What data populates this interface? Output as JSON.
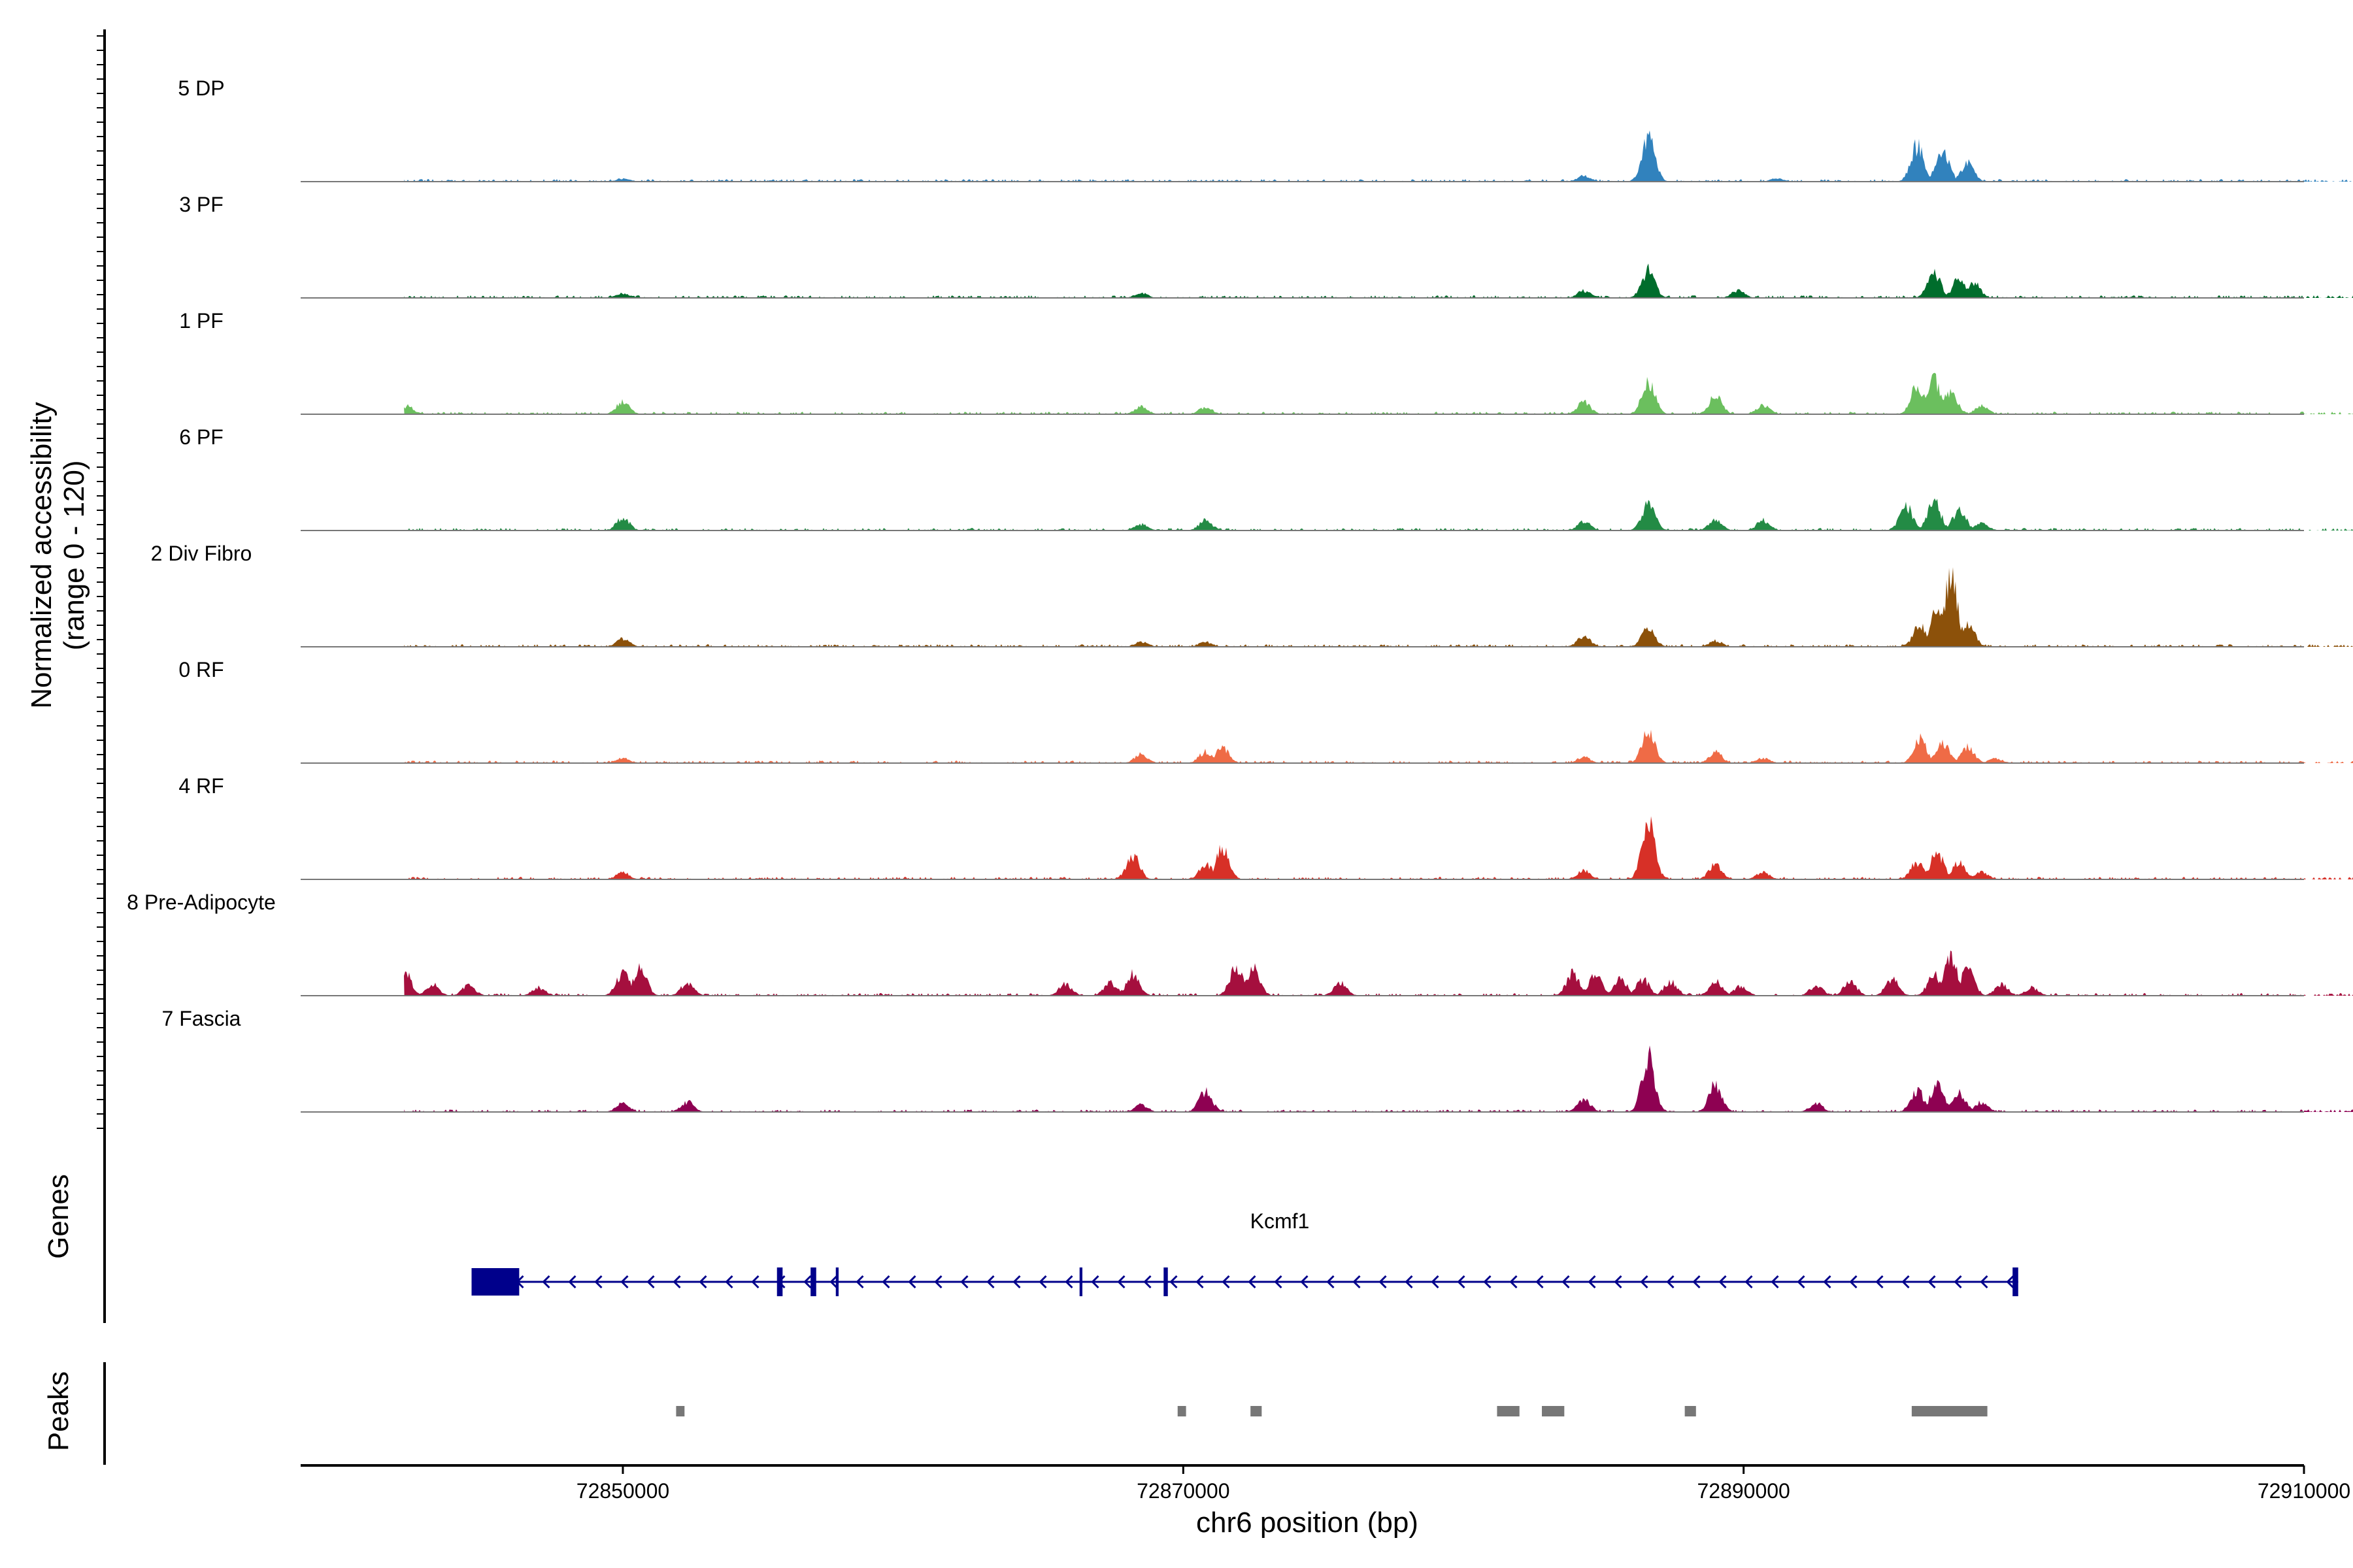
{
  "chart_data": {
    "type": "area",
    "title": "",
    "ylabel": "Normalized accessibility\n(range 0 - 120)",
    "ylim": [
      0,
      120
    ],
    "xlabel": "chr6 position (bp)",
    "xlim": [
      72838500,
      72910000
    ],
    "xticks": [
      {
        "value": 72850000,
        "label": "72850000"
      },
      {
        "value": 72870000,
        "label": "72870000"
      },
      {
        "value": 72890000,
        "label": "72890000"
      },
      {
        "value": 72910000,
        "label": "72910000"
      }
    ],
    "signal_range": [
      72842200,
      72913800
    ],
    "noise_max": 5,
    "series": [
      {
        "name": "5 DP",
        "color": "#3182BD",
        "peaks": [
          [
            72850000,
            8
          ],
          [
            72884300,
            15
          ],
          [
            72886600,
            105
          ],
          [
            72896200,
            88
          ],
          [
            72897100,
            75
          ],
          [
            72898000,
            45
          ],
          [
            72891200,
            8
          ]
        ]
      },
      {
        "name": "3 PF",
        "color": "#006D2C",
        "peaks": [
          [
            72850000,
            12
          ],
          [
            72868500,
            12
          ],
          [
            72884300,
            18
          ],
          [
            72886600,
            70
          ],
          [
            72889800,
            18
          ],
          [
            72896800,
            62
          ],
          [
            72897700,
            48
          ],
          [
            72898200,
            38
          ]
        ]
      },
      {
        "name": "1 PF",
        "color": "#6BBF5E",
        "peaks": [
          [
            72842300,
            20
          ],
          [
            72850000,
            30
          ],
          [
            72868500,
            18
          ],
          [
            72870800,
            18
          ],
          [
            72884300,
            30
          ],
          [
            72886600,
            80
          ],
          [
            72889000,
            45
          ],
          [
            72890700,
            22
          ],
          [
            72896200,
            68
          ],
          [
            72896800,
            82
          ],
          [
            72897400,
            58
          ],
          [
            72898500,
            20
          ]
        ]
      },
      {
        "name": "6 PF",
        "color": "#238B45",
        "peaks": [
          [
            72850000,
            32
          ],
          [
            72868500,
            15
          ],
          [
            72870800,
            25
          ],
          [
            72884300,
            22
          ],
          [
            72886600,
            65
          ],
          [
            72889000,
            25
          ],
          [
            72890700,
            25
          ],
          [
            72895800,
            60
          ],
          [
            72896800,
            72
          ],
          [
            72897700,
            50
          ],
          [
            72898500,
            18
          ]
        ]
      },
      {
        "name": "2 Div Fibro",
        "color": "#8C510A",
        "peaks": [
          [
            72850000,
            20
          ],
          [
            72868500,
            12
          ],
          [
            72870800,
            12
          ],
          [
            72884300,
            25
          ],
          [
            72886600,
            48
          ],
          [
            72889000,
            15
          ],
          [
            72896300,
            55
          ],
          [
            72896900,
            88
          ],
          [
            72897400,
            165
          ],
          [
            72898000,
            60
          ]
        ]
      },
      {
        "name": "0 RF",
        "color": "#EF6B46",
        "peaks": [
          [
            72850000,
            12
          ],
          [
            72868500,
            22
          ],
          [
            72870800,
            28
          ],
          [
            72871400,
            38
          ],
          [
            72884300,
            15
          ],
          [
            72886600,
            80
          ],
          [
            72889000,
            28
          ],
          [
            72890700,
            12
          ],
          [
            72896300,
            58
          ],
          [
            72897100,
            52
          ],
          [
            72898000,
            40
          ],
          [
            72899000,
            12
          ]
        ]
      },
      {
        "name": "4 RF",
        "color": "#D73027",
        "peaks": [
          [
            72850000,
            18
          ],
          [
            72868200,
            60
          ],
          [
            72870800,
            38
          ],
          [
            72871400,
            75
          ],
          [
            72884300,
            22
          ],
          [
            72886600,
            135
          ],
          [
            72889000,
            38
          ],
          [
            72890700,
            18
          ],
          [
            72896200,
            42
          ],
          [
            72896900,
            68
          ],
          [
            72897700,
            42
          ],
          [
            72898500,
            18
          ]
        ]
      },
      {
        "name": "8 Pre-Adipocyte",
        "color": "#A50F3E",
        "peaks": [
          [
            72842200,
            60
          ],
          [
            72843200,
            30
          ],
          [
            72844500,
            25
          ],
          [
            72847000,
            20
          ],
          [
            72852300,
            30
          ],
          [
            72850000,
            55
          ],
          [
            72850600,
            72
          ],
          [
            72865800,
            28
          ],
          [
            72867400,
            32
          ],
          [
            72868200,
            52
          ],
          [
            72871900,
            72
          ],
          [
            72872500,
            65
          ],
          [
            72875600,
            32
          ],
          [
            72883900,
            55
          ],
          [
            72884700,
            50
          ],
          [
            72885600,
            45
          ],
          [
            72886400,
            40
          ],
          [
            72887400,
            35
          ],
          [
            72889000,
            35
          ],
          [
            72889900,
            25
          ],
          [
            72892600,
            25
          ],
          [
            72893800,
            35
          ],
          [
            72895300,
            40
          ],
          [
            72896800,
            55
          ],
          [
            72897400,
            90
          ],
          [
            72898000,
            65
          ],
          [
            72899200,
            30
          ],
          [
            72900300,
            20
          ]
        ]
      },
      {
        "name": "7 Fascia",
        "color": "#8E0152",
        "peaks": [
          [
            72850000,
            22
          ],
          [
            72852300,
            25
          ],
          [
            72868500,
            18
          ],
          [
            72870800,
            50
          ],
          [
            72884300,
            30
          ],
          [
            72886600,
            135
          ],
          [
            72889000,
            68
          ],
          [
            72892600,
            22
          ],
          [
            72896200,
            55
          ],
          [
            72896900,
            65
          ],
          [
            72897700,
            48
          ],
          [
            72898500,
            25
          ]
        ]
      }
    ],
    "genes": {
      "label": "Genes",
      "name": "Kcmf1",
      "strand": "-",
      "color": "#00008B",
      "start": 72844600,
      "end": 72899800,
      "exons": [
        [
          72844600,
          72846300
        ],
        [
          72855500,
          72855700
        ],
        [
          72856700,
          72856900
        ],
        [
          72857600,
          72857700
        ],
        [
          72866300,
          72866400
        ],
        [
          72869300,
          72869450
        ],
        [
          72899600,
          72899800
        ]
      ]
    },
    "peaks": {
      "label": "Peaks",
      "color": "#777777",
      "regions": [
        [
          72851900,
          72852200
        ],
        [
          72869800,
          72870100
        ],
        [
          72872400,
          72872800
        ],
        [
          72881200,
          72882000
        ],
        [
          72882800,
          72883600
        ],
        [
          72887900,
          72888300
        ],
        [
          72896000,
          72898700
        ]
      ]
    }
  }
}
